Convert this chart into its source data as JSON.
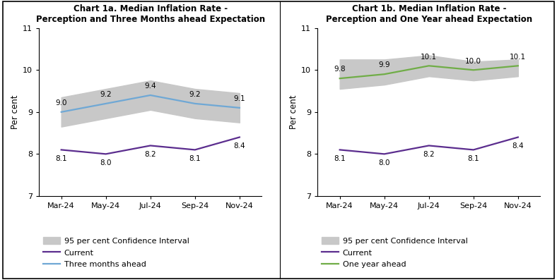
{
  "x_labels": [
    "Mar-24",
    "May-24",
    "Jul-24",
    "Sep-24",
    "Nov-24"
  ],
  "x": [
    0,
    1,
    2,
    3,
    4
  ],
  "chart1a": {
    "title": "Chart 1a. Median Inflation Rate -\nPerception and Three Months ahead Expectation",
    "current": [
      8.1,
      8.0,
      8.2,
      8.1,
      8.4
    ],
    "three_months": [
      9.0,
      9.2,
      9.4,
      9.2,
      9.1
    ],
    "ci_upper": [
      9.35,
      9.55,
      9.75,
      9.55,
      9.45
    ],
    "ci_lower": [
      8.65,
      8.85,
      9.05,
      8.85,
      8.75
    ],
    "labels_three_months": [
      "9.0",
      "9.2",
      "9.4",
      "9.2",
      "9.1"
    ],
    "labels_current": [
      "8.1",
      "8.0",
      "8.2",
      "8.1",
      "8.4"
    ]
  },
  "chart1b": {
    "title": "Chart 1b. Median Inflation Rate -\nPerception and One Year ahead Expectation",
    "current": [
      8.1,
      8.0,
      8.2,
      8.1,
      8.4
    ],
    "one_year": [
      9.8,
      9.9,
      10.1,
      10.0,
      10.1
    ],
    "ci_upper": [
      10.25,
      10.25,
      10.35,
      10.2,
      10.25
    ],
    "ci_lower": [
      9.55,
      9.65,
      9.85,
      9.75,
      9.85
    ],
    "labels_one_year": [
      "9.8",
      "9.9",
      "10.1",
      "10.0",
      "10.1"
    ],
    "labels_current": [
      "8.1",
      "8.0",
      "8.2",
      "8.1",
      "8.4"
    ]
  },
  "ylim": [
    7,
    11
  ],
  "yticks": [
    7,
    8,
    9,
    10,
    11
  ],
  "ylabel": "Per cent",
  "ci_color": "#c8c8c8",
  "current_color": "#5b2d8e",
  "three_months_color": "#6fa8d5",
  "one_year_color": "#70ad47",
  "bg_color": "#ffffff",
  "legend_ci_label": "95 per cent Confidence Interval",
  "legend_current_label": "Current",
  "legend_3m_label": "Three months ahead",
  "legend_1y_label": "One year ahead"
}
